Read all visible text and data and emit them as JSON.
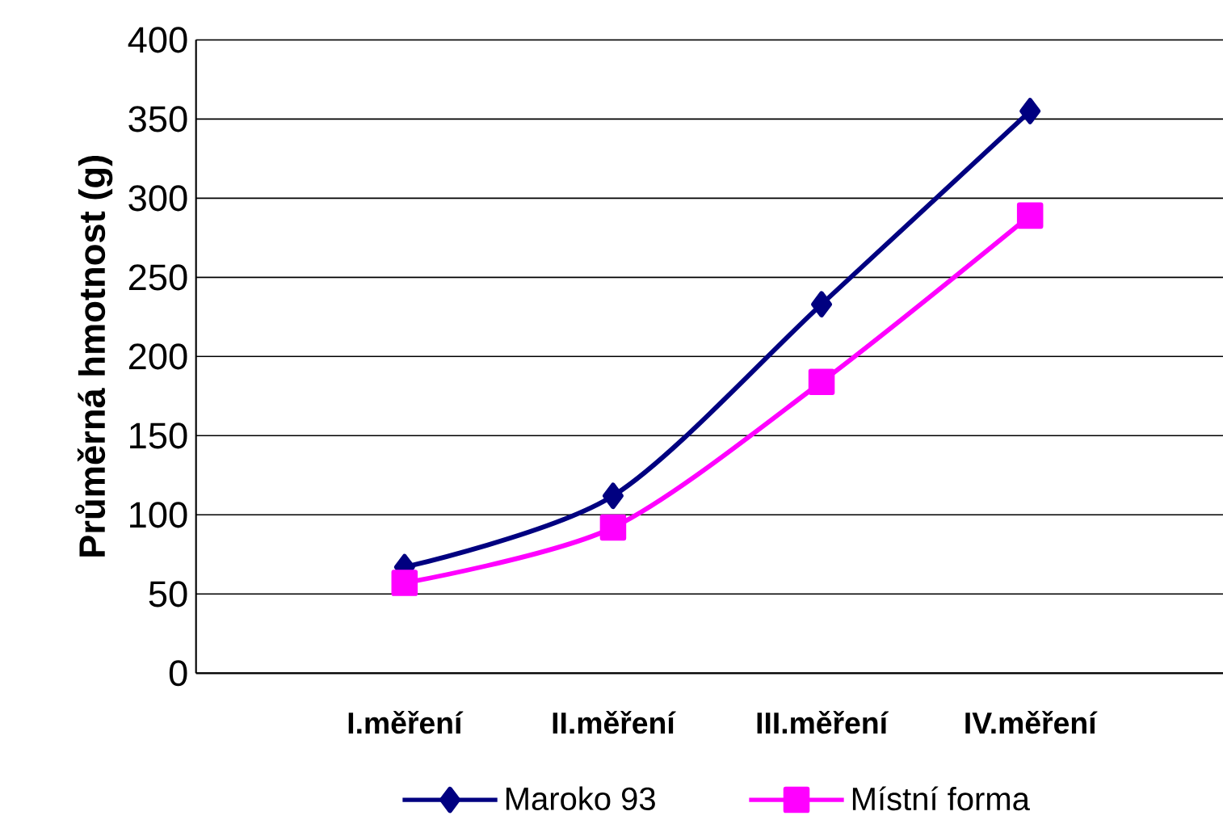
{
  "chart_data": {
    "type": "line",
    "ylabel": "Průměrná hmotnost (g)",
    "categories": [
      "I.měření",
      "II.měření",
      "III.měření",
      "IV.měření"
    ],
    "series": [
      {
        "name": "Maroko 93",
        "color": "#000080",
        "values": [
          67,
          112,
          233,
          355
        ],
        "marker": "diamond"
      },
      {
        "name": "Místní forma",
        "color": "#ff00ff",
        "values": [
          57,
          92,
          184,
          289
        ],
        "marker": "square"
      }
    ],
    "ylim": [
      0,
      400
    ],
    "yticks": [
      0,
      50,
      100,
      150,
      200,
      250,
      300,
      350,
      400
    ],
    "grid": "y",
    "legend": "bottom",
    "line_style": "solid"
  }
}
